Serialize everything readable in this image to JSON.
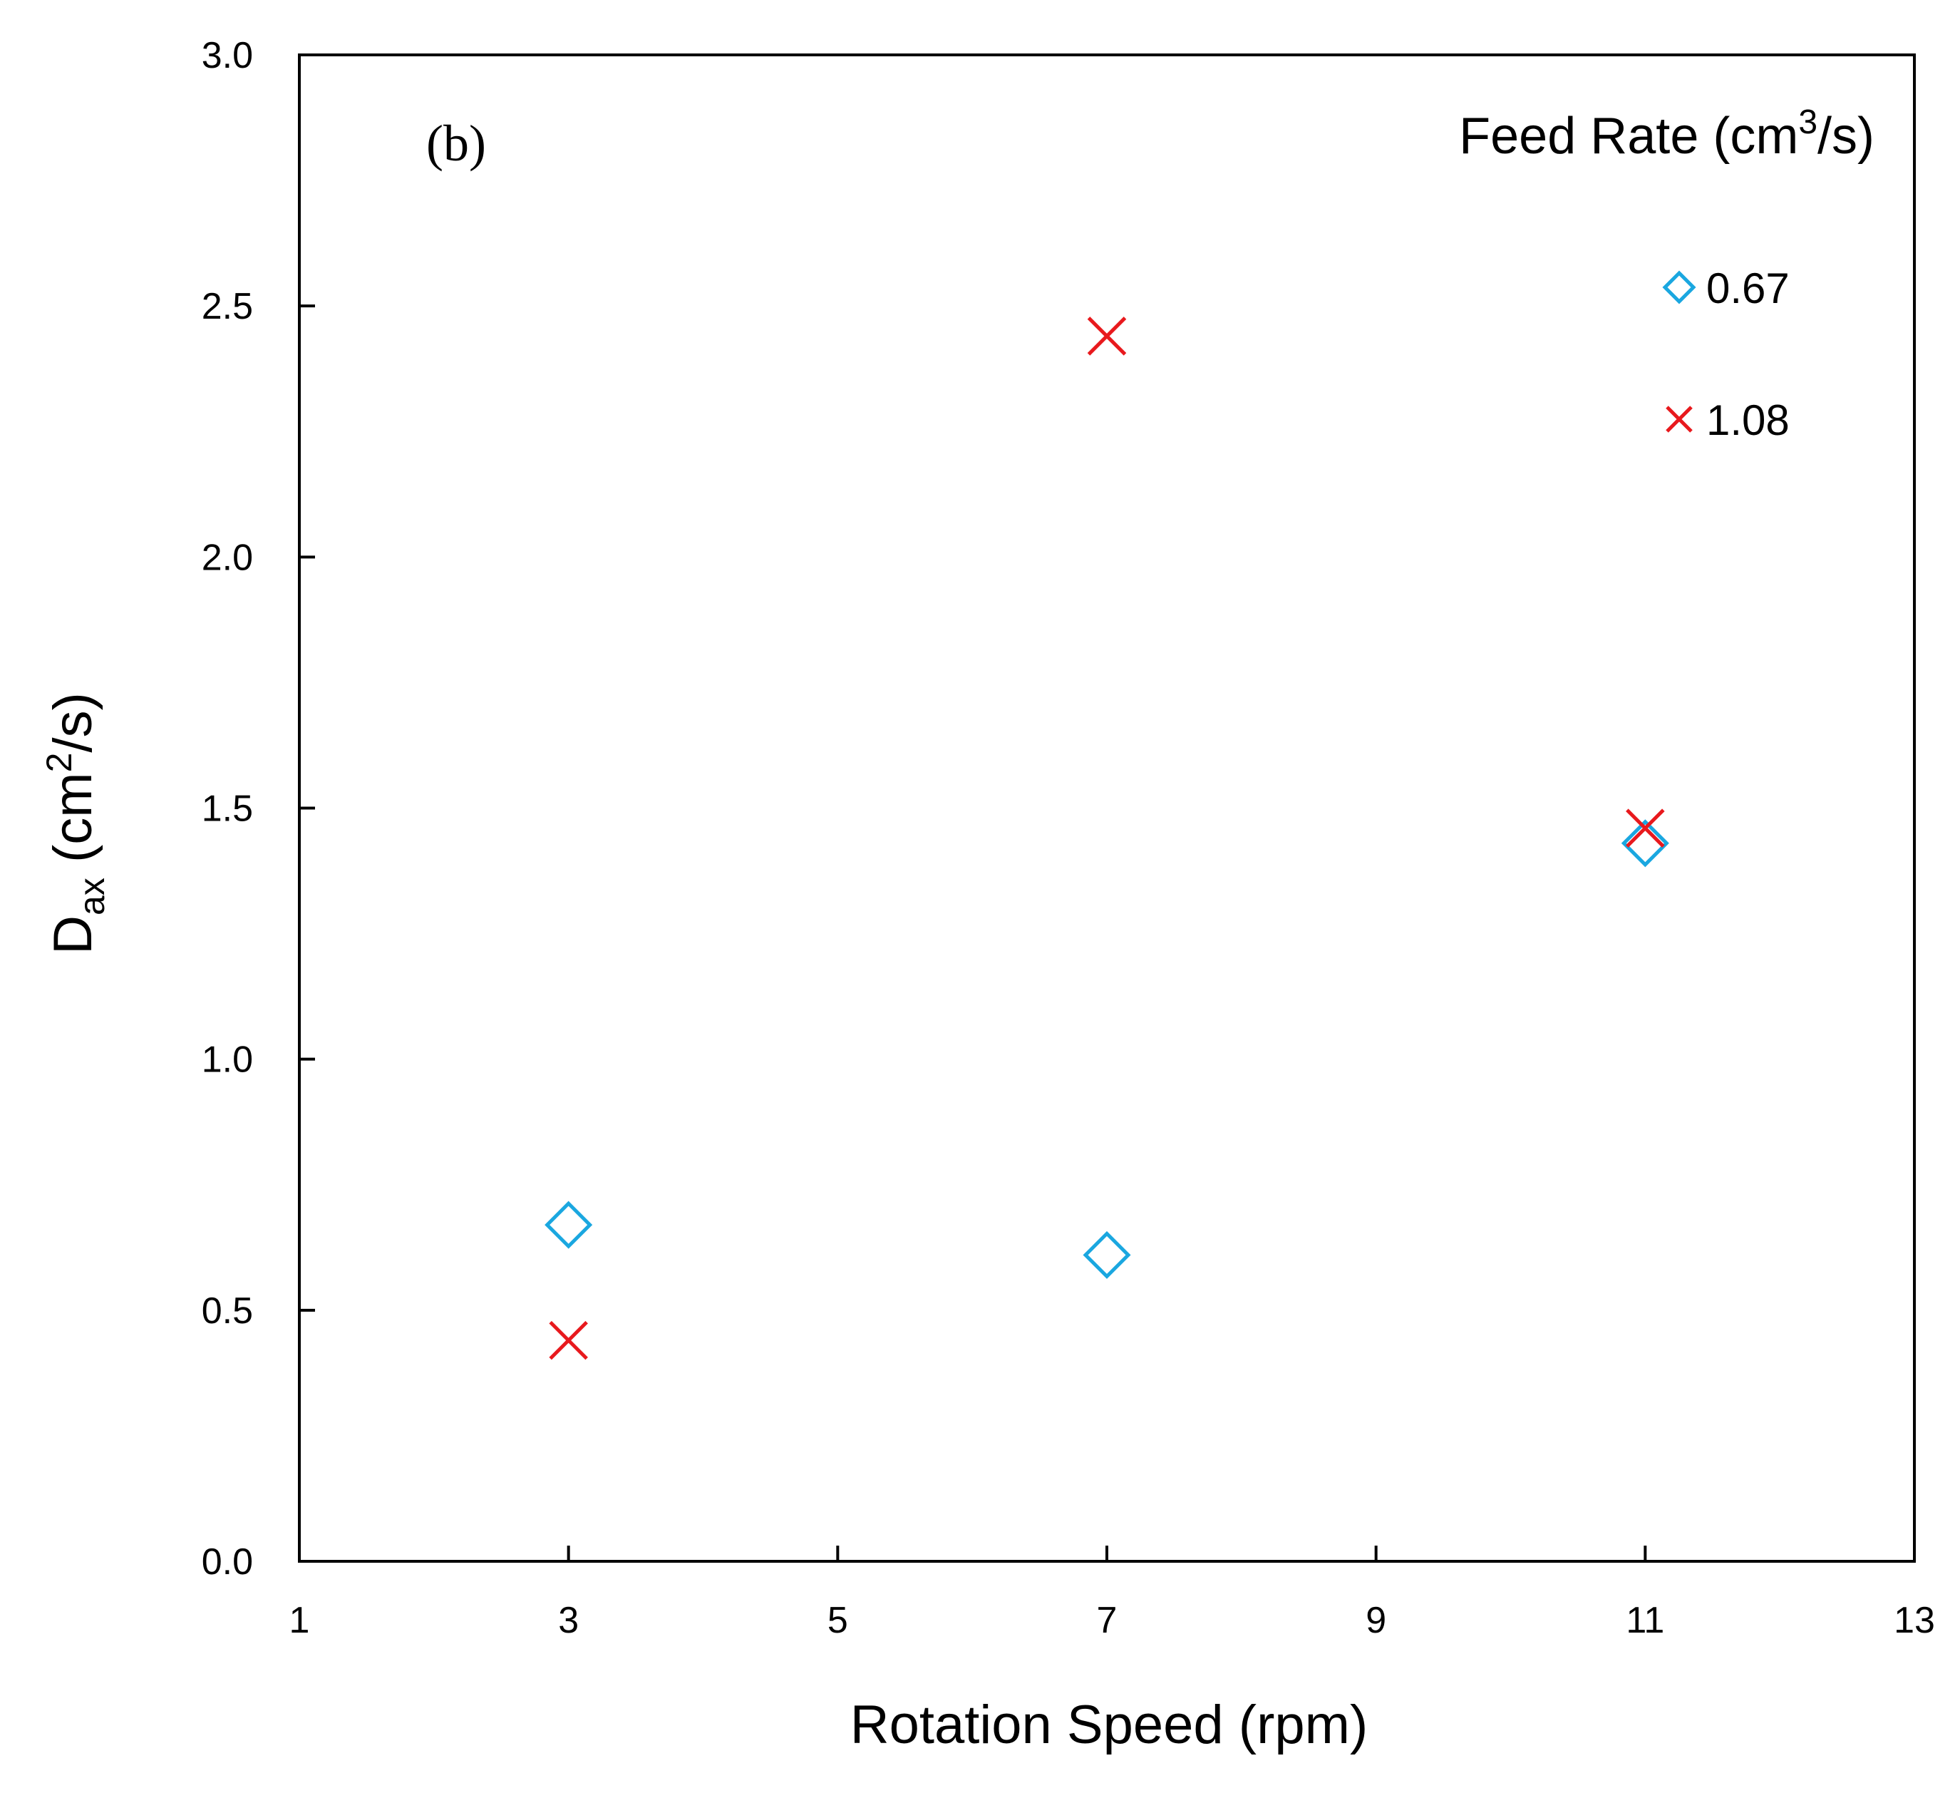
{
  "chart_data": {
    "type": "scatter",
    "panel_label": "(b)",
    "xlabel": "Rotation Speed (rpm)",
    "ylabel": {
      "main": "D",
      "subscript": "ax",
      "unit_prefix": " (cm",
      "unit_superscript": "2",
      "unit_suffix": "/s)"
    },
    "xlim": [
      1,
      13
    ],
    "ylim": [
      0.0,
      3.0
    ],
    "x_ticks": [
      1,
      3,
      5,
      7,
      9,
      11,
      13
    ],
    "y_ticks": [
      0.0,
      0.5,
      1.0,
      1.5,
      2.0,
      2.5,
      3.0
    ],
    "x_tick_labels": [
      "1",
      "3",
      "5",
      "7",
      "9",
      "11",
      "13"
    ],
    "y_tick_labels": [
      "0.0",
      "0.5",
      "1.0",
      "1.5",
      "2.0",
      "2.5",
      "3.0"
    ],
    "grid": false,
    "legend": {
      "placement": "top-right",
      "title": {
        "main": "Feed Rate (cm",
        "superscript": "3",
        "suffix": "/s)"
      }
    },
    "series": [
      {
        "name": "0.67",
        "marker": "diamond",
        "color": "#1AA7E0",
        "points": [
          {
            "x": 3,
            "y": 0.67
          },
          {
            "x": 7,
            "y": 0.61
          },
          {
            "x": 11,
            "y": 1.43
          }
        ]
      },
      {
        "name": "1.08",
        "marker": "x",
        "color": "#E8191D",
        "points": [
          {
            "x": 3,
            "y": 0.44
          },
          {
            "x": 7,
            "y": 2.44
          },
          {
            "x": 11,
            "y": 1.46
          }
        ]
      }
    ]
  }
}
